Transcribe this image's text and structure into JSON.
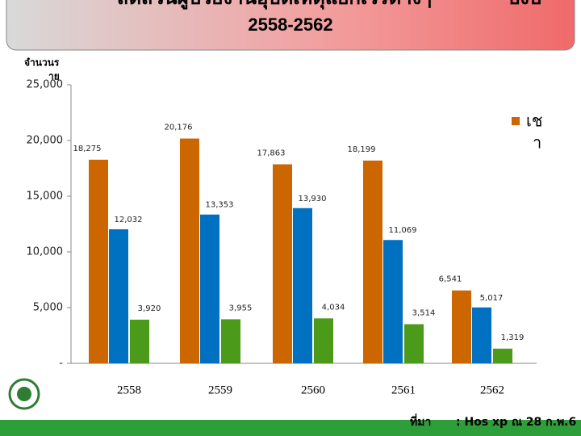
{
  "chart_data": {
    "type": "bar",
    "title": "สัดส่วนผู้ป่วยงานอุบัติเหตุแยกเวรต่างๆ",
    "title_right": "ปีงบ",
    "subtitle": "2558-2562",
    "y_label": [
      "จำนวนร",
      "าย"
    ],
    "categories": [
      "2558",
      "2559",
      "2560",
      "2561",
      "2562"
    ],
    "series": [
      {
        "name": [
          "เช",
          "า"
        ],
        "color": "#cc6600",
        "values": [
          18275,
          20176,
          17863,
          18199,
          6541
        ],
        "value_labels": [
          "18,275",
          "20,176",
          "17,863",
          "18,199",
          "6,541"
        ]
      },
      {
        "color": "#0070c0",
        "values": [
          12032,
          13353,
          13930,
          11069,
          5017
        ],
        "value_labels": [
          "12,032",
          "13,353",
          "13,930",
          "11,069",
          "5,017"
        ]
      },
      {
        "color": "#4c9a1a",
        "values": [
          3920,
          3955,
          4034,
          3514,
          1319
        ],
        "value_labels": [
          "3,920",
          "3,955",
          "4,034",
          "3,514",
          "1,319"
        ]
      }
    ],
    "ylim": [
      0,
      25000
    ],
    "yticks": [
      {
        "value": 0,
        "label": "-"
      },
      {
        "value": 5000,
        "label": "5,000"
      },
      {
        "value": 10000,
        "label": "10,000"
      },
      {
        "value": 15000,
        "label": "15,000"
      },
      {
        "value": 20000,
        "label": "20,000"
      },
      {
        "value": 25000,
        "label": "25,000"
      }
    ],
    "source_label": "ที่มา",
    "source": ": Hos xp ณ 28 ก.พ.6"
  }
}
